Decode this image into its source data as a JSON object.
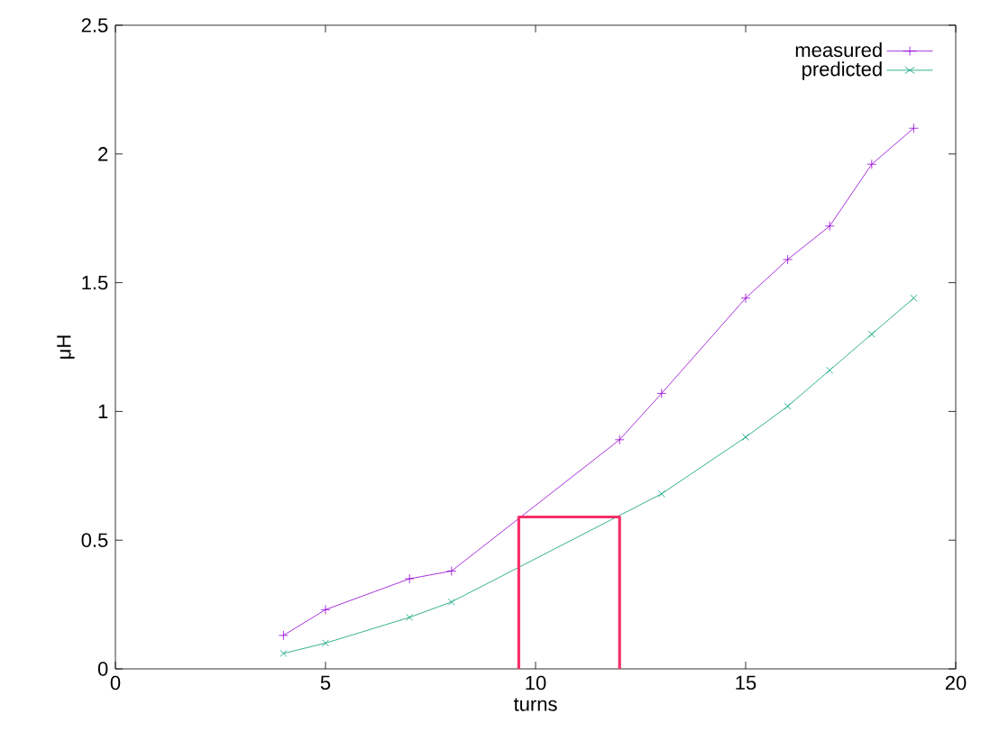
{
  "chart_data": {
    "type": "line",
    "xlabel": "turns",
    "ylabel": "μH",
    "xlim": [
      0,
      20
    ],
    "ylim": [
      0,
      2.5
    ],
    "xticks": [
      0,
      5,
      10,
      15,
      20
    ],
    "yticks": [
      0,
      0.5,
      1,
      1.5,
      2,
      2.5
    ],
    "legend": "top right",
    "grid": false,
    "line_style": "solid",
    "series": [
      {
        "name": "measured",
        "color": "#9400d3",
        "marker": "plus",
        "x": [
          4,
          5,
          7,
          8,
          12,
          13,
          15,
          16,
          17,
          18,
          19
        ],
        "values": [
          0.13,
          0.23,
          0.35,
          0.38,
          0.89,
          1.07,
          1.44,
          1.59,
          1.72,
          1.96,
          2.1
        ]
      },
      {
        "name": "predicted",
        "color": "#009e73",
        "marker": "cross",
        "x": [
          4,
          5,
          7,
          8,
          13,
          15,
          16,
          17,
          18,
          19
        ],
        "values": [
          0.06,
          0.1,
          0.2,
          0.26,
          0.68,
          0.9,
          1.02,
          1.16,
          1.3,
          1.44
        ]
      },
      {
        "color": "#f5306a",
        "marker": "none",
        "x": [
          9.6,
          9.6,
          12,
          12
        ],
        "values": [
          0,
          0.59,
          0.59,
          0
        ]
      }
    ]
  }
}
